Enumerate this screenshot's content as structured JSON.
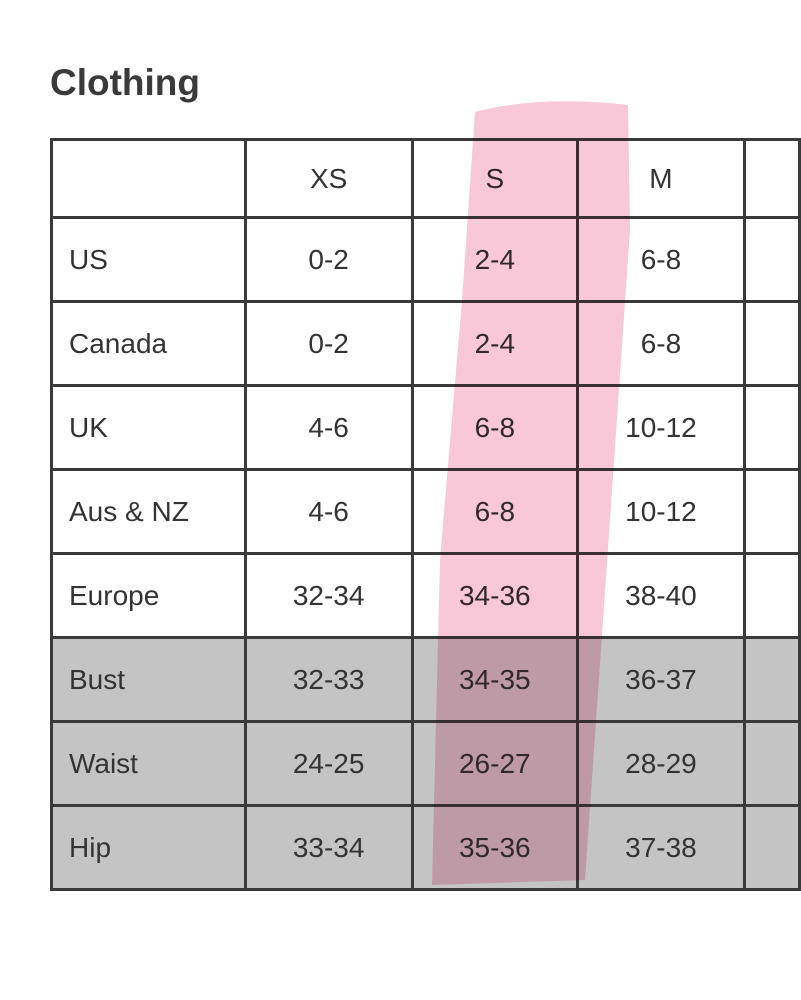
{
  "header": {
    "title": "Clothing"
  },
  "table": {
    "columns": [
      "XS",
      "S",
      "M"
    ],
    "rows": [
      {
        "label": "US",
        "values": [
          "0-2",
          "2-4",
          "6-8"
        ]
      },
      {
        "label": "Canada",
        "values": [
          "0-2",
          "2-4",
          "6-8"
        ]
      },
      {
        "label": "UK",
        "values": [
          "4-6",
          "6-8",
          "10-12"
        ]
      },
      {
        "label": "Aus & NZ",
        "values": [
          "4-6",
          "6-8",
          "10-12"
        ]
      },
      {
        "label": "Europe",
        "values": [
          "32-34",
          "34-36",
          "38-40"
        ]
      },
      {
        "label": "Bust",
        "values": [
          "32-33",
          "34-35",
          "36-37"
        ],
        "shaded": true
      },
      {
        "label": "Waist",
        "values": [
          "24-25",
          "26-27",
          "28-29"
        ],
        "shaded": true
      },
      {
        "label": "Hip",
        "values": [
          "33-34",
          "35-36",
          "37-38"
        ],
        "shaded": true
      }
    ]
  }
}
